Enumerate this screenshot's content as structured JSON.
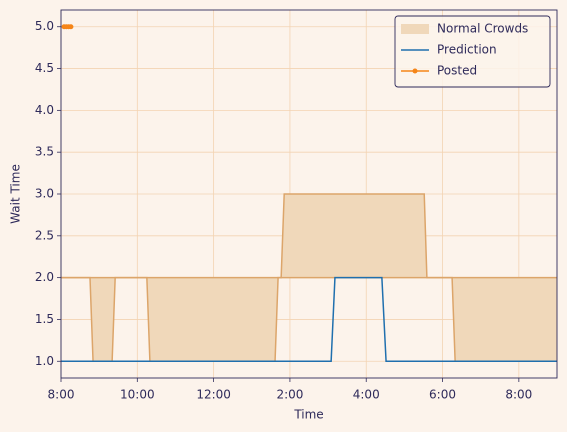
{
  "chart_data": {
    "type": "line",
    "xlabel": "Time",
    "ylabel": "Wait Time",
    "xlim": [
      8,
      21
    ],
    "ylim": [
      0.8,
      5.2
    ],
    "xticks": [
      {
        "value": 8,
        "label": "8:00"
      },
      {
        "value": 10,
        "label": "10:00"
      },
      {
        "value": 12,
        "label": "12:00"
      },
      {
        "value": 14,
        "label": "2:00"
      },
      {
        "value": 16,
        "label": "4:00"
      },
      {
        "value": 18,
        "label": "6:00"
      },
      {
        "value": 20,
        "label": "8:00"
      }
    ],
    "yticks": [
      {
        "value": 1,
        "label": "1.0"
      },
      1.5,
      {
        "value": 2,
        "label": "2.0"
      },
      2.5,
      {
        "value": 3,
        "label": "3.0"
      },
      3.5,
      {
        "value": 4,
        "label": "4.0"
      },
      4.5,
      {
        "value": 5,
        "label": "5.0"
      }
    ],
    "grid": true,
    "legend": "upper right",
    "series": [
      {
        "name": "Normal Crowds",
        "kind": "band",
        "color": "#f0d8ba",
        "edge_color": "#dca56a",
        "x": [
          8,
          8.76,
          8.84,
          9.34,
          9.42,
          10.25,
          10.33,
          13.61,
          13.69,
          13.77,
          13.85,
          17.52,
          17.59,
          18.25,
          18.33,
          21
        ],
        "low": [
          2,
          2,
          1,
          1,
          2,
          2,
          1,
          1,
          2,
          2,
          2,
          2,
          2,
          2,
          1,
          1
        ],
        "high": [
          2,
          2,
          2,
          2,
          2,
          2,
          2,
          2,
          2,
          2,
          3,
          3,
          2,
          2,
          2,
          2
        ]
      },
      {
        "name": "Prediction",
        "kind": "line",
        "color": "#1f6fae",
        "x": [
          8,
          15.08,
          15.18,
          16.41,
          16.52,
          21
        ],
        "values": [
          1,
          1,
          2,
          2,
          1,
          1
        ]
      },
      {
        "name": "Posted",
        "kind": "line",
        "marker": true,
        "color": "#f58518",
        "x": [
          8.08,
          8.14,
          8.2,
          8.26
        ],
        "values": [
          5,
          5,
          5,
          5
        ]
      }
    ]
  }
}
